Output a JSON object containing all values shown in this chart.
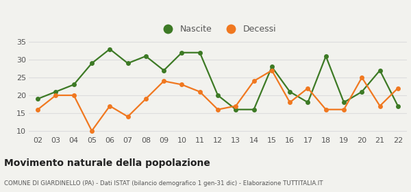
{
  "years": [
    "02",
    "03",
    "04",
    "05",
    "06",
    "07",
    "08",
    "09",
    "10",
    "11",
    "12",
    "13",
    "14",
    "15",
    "16",
    "17",
    "18",
    "19",
    "20",
    "21",
    "22"
  ],
  "nascite": [
    19,
    21,
    23,
    29,
    33,
    29,
    31,
    27,
    32,
    32,
    20,
    16,
    16,
    28,
    21,
    18,
    31,
    18,
    21,
    27,
    17
  ],
  "decessi": [
    16,
    20,
    20,
    10,
    17,
    14,
    19,
    24,
    23,
    21,
    16,
    17,
    24,
    27,
    18,
    22,
    16,
    16,
    25,
    17,
    22
  ],
  "nascite_color": "#3d7a25",
  "decessi_color": "#f07820",
  "bg_color": "#f2f2ee",
  "plot_bg_color": "#f2f2ee",
  "grid_color": "#dddddd",
  "ylim": [
    9,
    36
  ],
  "yticks": [
    10,
    15,
    20,
    25,
    30,
    35
  ],
  "title": "Movimento naturale della popolazione",
  "subtitle": "COMUNE DI GIARDINELLO (PA) - Dati ISTAT (bilancio demografico 1 gen-31 dic) - Elaborazione TUTTITALIA.IT",
  "legend_nascite": "Nascite",
  "legend_decessi": "Decessi",
  "marker_size": 5,
  "line_width": 1.6
}
